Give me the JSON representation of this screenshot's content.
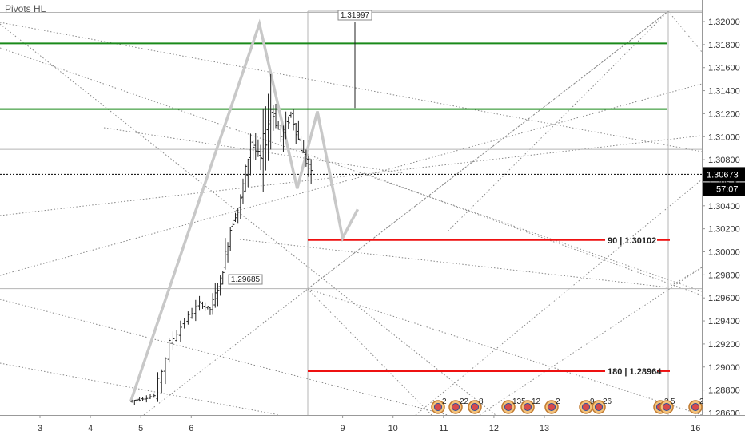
{
  "indicator": {
    "title": "Pivots HL"
  },
  "chart_data": {
    "type": "candlestick",
    "y_ticks": [
      "1.32000",
      "1.31800",
      "1.31600",
      "1.31400",
      "1.31200",
      "1.31000",
      "1.30800",
      "1.30600",
      "1.30400",
      "1.30200",
      "1.30000",
      "1.29800",
      "1.29600",
      "1.29400",
      "1.29200",
      "1.29000",
      "1.28800",
      "1.28600"
    ],
    "y_range": [
      1.2855,
      1.3218
    ],
    "x_ticks": [
      "3",
      "4",
      "5",
      "6",
      "7",
      "8",
      "9",
      "10",
      "11",
      "12",
      "13",
      "14",
      "15",
      "16"
    ],
    "x_tick_labels_shown": [
      "3",
      "4",
      "5",
      "6",
      "9",
      "10",
      "11",
      "12",
      "13",
      "16"
    ],
    "current_price": "1.30673",
    "countdown": "57:07",
    "pivot_labels": {
      "high": "1.31997",
      "low": "1.29685"
    },
    "levels": [
      {
        "type": "green",
        "value": 1.3181
      },
      {
        "type": "green",
        "value": 1.3124
      },
      {
        "type": "red",
        "label": "90 | 1.30102",
        "value": 1.30102
      },
      {
        "type": "red",
        "label": "180 | 1.28964",
        "value": 1.28964
      }
    ],
    "grey_horizontals": [
      1.3208,
      1.3089,
      1.2968
    ],
    "candles_daily": [
      {
        "day": 4.8,
        "o": 1.287,
        "h": 1.2877,
        "l": 1.2858,
        "c": 1.2872
      },
      {
        "day": 5.0,
        "o": 1.2872,
        "h": 1.288,
        "l": 1.2866,
        "c": 1.2875
      },
      {
        "day": 5.3,
        "o": 1.2875,
        "h": 1.2925,
        "l": 1.2868,
        "c": 1.292
      },
      {
        "day": 5.6,
        "o": 1.292,
        "h": 1.2945,
        "l": 1.2905,
        "c": 1.294
      },
      {
        "day": 5.9,
        "o": 1.294,
        "h": 1.2962,
        "l": 1.293,
        "c": 1.2955
      },
      {
        "day": 6.2,
        "o": 1.2955,
        "h": 1.2968,
        "l": 1.2945,
        "c": 1.295
      },
      {
        "day": 6.4,
        "o": 1.295,
        "h": 1.2985,
        "l": 1.294,
        "c": 1.2975
      },
      {
        "day": 6.6,
        "o": 1.2975,
        "h": 1.303,
        "l": 1.2965,
        "c": 1.302
      },
      {
        "day": 6.8,
        "o": 1.302,
        "h": 1.305,
        "l": 1.3,
        "c": 1.3045
      },
      {
        "day": 7.0,
        "o": 1.3045,
        "h": 1.311,
        "l": 1.303,
        "c": 1.3095
      },
      {
        "day": 7.2,
        "o": 1.3095,
        "h": 1.3125,
        "l": 1.307,
        "c": 1.308
      },
      {
        "day": 7.4,
        "o": 1.308,
        "h": 1.32,
        "l": 1.3035,
        "c": 1.3125
      },
      {
        "day": 7.6,
        "o": 1.3125,
        "h": 1.315,
        "l": 1.309,
        "c": 1.31
      },
      {
        "day": 7.8,
        "o": 1.31,
        "h": 1.3145,
        "l": 1.308,
        "c": 1.312
      },
      {
        "day": 8.0,
        "o": 1.312,
        "h": 1.313,
        "l": 1.308,
        "c": 1.309
      },
      {
        "day": 8.2,
        "o": 1.309,
        "h": 1.31,
        "l": 1.3042,
        "c": 1.3067
      }
    ],
    "projection_zigzag": [
      {
        "day": 4.8,
        "price": 1.287
      },
      {
        "day": 7.35,
        "price": 1.3198
      },
      {
        "day": 8.1,
        "price": 1.3055
      },
      {
        "day": 8.5,
        "price": 1.3122
      },
      {
        "day": 9.0,
        "price": 1.3012
      },
      {
        "day": 9.3,
        "price": 1.3037
      }
    ],
    "event_badges": [
      "2",
      "22",
      "8",
      "135",
      "12",
      "2",
      "9",
      "26",
      "3",
      "5",
      "2"
    ]
  },
  "colors": {
    "green_level": "#1a8a1a",
    "red_level": "#ee1111",
    "grey_line": "#b5b5b5",
    "candle": "#222222",
    "projection": "#c8c8c8",
    "price_tag": "#000000"
  }
}
